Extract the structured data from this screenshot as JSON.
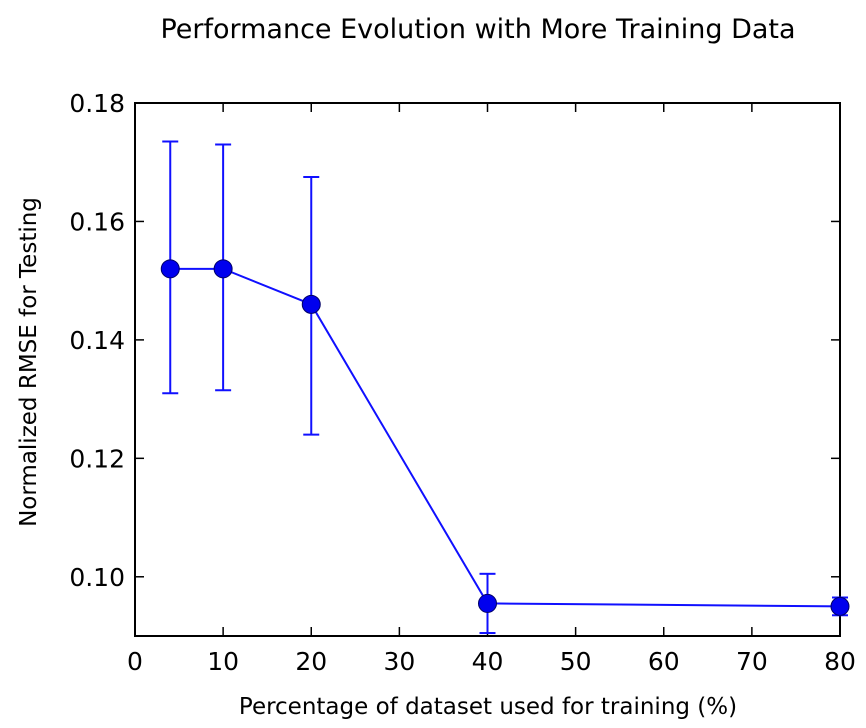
{
  "chart_data": {
    "type": "line",
    "title": "Performance Evolution with More Training Data",
    "xlabel": "Percentage of dataset used for training (%)",
    "ylabel": "Normalized RMSE for Testing",
    "xlim": [
      0,
      80
    ],
    "ylim": [
      0.09,
      0.18
    ],
    "xticks": [
      0,
      10,
      20,
      30,
      40,
      50,
      60,
      70,
      80
    ],
    "yticks": [
      0.1,
      0.12,
      0.14,
      0.16,
      0.18
    ],
    "xtick_labels": [
      "0",
      "10",
      "20",
      "30",
      "40",
      "50",
      "60",
      "70",
      "80"
    ],
    "ytick_labels": [
      "0.10",
      "0.12",
      "0.14",
      "0.16",
      "0.18"
    ],
    "grid": false,
    "series": [
      {
        "x": [
          4,
          10,
          20,
          40,
          80
        ],
        "y": [
          0.152,
          0.152,
          0.146,
          0.0955,
          0.095
        ],
        "err_low": [
          0.131,
          0.1315,
          0.124,
          0.0905,
          0.0935
        ],
        "err_high": [
          0.1735,
          0.173,
          0.1675,
          0.1005,
          0.0965
        ],
        "color": "#1010ff",
        "marker": "circle"
      }
    ]
  }
}
